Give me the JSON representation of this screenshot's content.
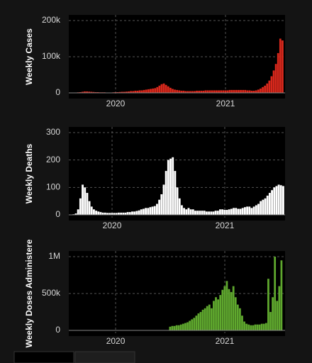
{
  "chart_data": [
    {
      "type": "bar",
      "y_label": "Weekly Cases",
      "color": "#d9281c",
      "grid": true,
      "xlim": [
        2019.574,
        2021.542
      ],
      "xticks": [
        2020,
        2021
      ],
      "ylim": [
        0,
        200000
      ],
      "yticks": [
        0,
        {
          "value": 100000,
          "label": "100k"
        },
        {
          "value": 200000,
          "label": "200k"
        }
      ],
      "x": [
        2019.6,
        2019.62,
        2019.64,
        2019.66,
        2019.68,
        2019.7,
        2019.72,
        2019.74,
        2019.76,
        2019.78,
        2019.8,
        2019.82,
        2019.84,
        2019.86,
        2019.88,
        2019.9,
        2019.92,
        2019.94,
        2019.96,
        2019.98,
        2020.0,
        2020.02,
        2020.04,
        2020.06,
        2020.08,
        2020.1,
        2020.12,
        2020.14,
        2020.16,
        2020.18,
        2020.2,
        2020.22,
        2020.24,
        2020.26,
        2020.28,
        2020.3,
        2020.32,
        2020.34,
        2020.36,
        2020.38,
        2020.4,
        2020.42,
        2020.44,
        2020.46,
        2020.48,
        2020.5,
        2020.52,
        2020.54,
        2020.56,
        2020.58,
        2020.6,
        2020.62,
        2020.64,
        2020.66,
        2020.68,
        2020.7,
        2020.72,
        2020.74,
        2020.76,
        2020.78,
        2020.8,
        2020.82,
        2020.84,
        2020.86,
        2020.88,
        2020.9,
        2020.92,
        2020.94,
        2020.96,
        2020.98,
        2021.0,
        2021.02,
        2021.04,
        2021.06,
        2021.08,
        2021.1,
        2021.12,
        2021.14,
        2021.16,
        2021.18,
        2021.2,
        2021.22,
        2021.24,
        2021.26,
        2021.28,
        2021.3,
        2021.32,
        2021.34,
        2021.36,
        2021.38,
        2021.4,
        2021.42,
        2021.44,
        2021.46,
        2021.48,
        2021.5,
        2021.52
      ],
      "values": [
        500,
        800,
        1000,
        1500,
        2000,
        3000,
        4000,
        4000,
        3500,
        3000,
        2500,
        2000,
        2000,
        1500,
        1500,
        1500,
        1000,
        1000,
        1000,
        1500,
        2000,
        2000,
        2500,
        3000,
        3000,
        3500,
        4000,
        5000,
        5000,
        6000,
        6000,
        7000,
        7000,
        8000,
        9000,
        10000,
        11000,
        12000,
        13000,
        16000,
        20000,
        24000,
        26000,
        22000,
        18000,
        14000,
        11000,
        9000,
        8000,
        7000,
        6000,
        6000,
        5000,
        5000,
        5000,
        5000,
        5000,
        6000,
        6000,
        6000,
        6000,
        7000,
        7000,
        7000,
        7000,
        7000,
        7000,
        7000,
        7000,
        7000,
        7000,
        7000,
        8000,
        8000,
        8000,
        8000,
        8000,
        8000,
        8000,
        8000,
        7000,
        7000,
        6000,
        6000,
        7000,
        9000,
        12000,
        16000,
        20000,
        26000,
        34000,
        46000,
        62000,
        80000,
        110000,
        150000,
        145000
      ]
    },
    {
      "type": "bar",
      "y_label": "Weekly Deaths",
      "color": "#ffffff",
      "grid": true,
      "xlim": [
        2019.616,
        2021.535
      ],
      "xticks": [
        2020,
        2021
      ],
      "ylim": [
        0,
        300
      ],
      "yticks": [
        0,
        100,
        200,
        300
      ],
      "x": [
        2019.6,
        2019.62,
        2019.64,
        2019.66,
        2019.68,
        2019.7,
        2019.72,
        2019.74,
        2019.76,
        2019.78,
        2019.8,
        2019.82,
        2019.84,
        2019.86,
        2019.88,
        2019.9,
        2019.92,
        2019.94,
        2019.96,
        2019.98,
        2020.0,
        2020.02,
        2020.04,
        2020.06,
        2020.08,
        2020.1,
        2020.12,
        2020.14,
        2020.16,
        2020.18,
        2020.2,
        2020.22,
        2020.24,
        2020.26,
        2020.28,
        2020.3,
        2020.32,
        2020.34,
        2020.36,
        2020.38,
        2020.4,
        2020.42,
        2020.44,
        2020.46,
        2020.48,
        2020.5,
        2020.52,
        2020.54,
        2020.56,
        2020.58,
        2020.6,
        2020.62,
        2020.64,
        2020.66,
        2020.68,
        2020.7,
        2020.72,
        2020.74,
        2020.76,
        2020.78,
        2020.8,
        2020.82,
        2020.84,
        2020.86,
        2020.88,
        2020.9,
        2020.92,
        2020.94,
        2020.96,
        2020.98,
        2021.0,
        2021.02,
        2021.04,
        2021.06,
        2021.08,
        2021.1,
        2021.12,
        2021.14,
        2021.16,
        2021.18,
        2021.2,
        2021.22,
        2021.24,
        2021.26,
        2021.28,
        2021.3,
        2021.32,
        2021.34,
        2021.36,
        2021.38,
        2021.4,
        2021.42,
        2021.44,
        2021.46,
        2021.48,
        2021.5,
        2021.52
      ],
      "values": [
        0,
        0,
        0,
        2,
        5,
        20,
        60,
        110,
        100,
        80,
        50,
        30,
        20,
        15,
        12,
        10,
        8,
        8,
        7,
        7,
        7,
        7,
        7,
        8,
        8,
        8,
        8,
        10,
        10,
        12,
        12,
        14,
        16,
        20,
        22,
        25,
        25,
        28,
        30,
        32,
        40,
        55,
        75,
        110,
        160,
        200,
        205,
        210,
        160,
        100,
        60,
        35,
        25,
        20,
        25,
        20,
        20,
        15,
        15,
        15,
        15,
        15,
        12,
        12,
        12,
        12,
        15,
        15,
        20,
        20,
        18,
        18,
        20,
        22,
        25,
        25,
        22,
        22,
        25,
        28,
        30,
        30,
        25,
        30,
        35,
        40,
        50,
        55,
        60,
        70,
        80,
        90,
        100,
        105,
        110,
        108,
        105
      ]
    },
    {
      "type": "bar",
      "y_label": "Weekly Doses Administere",
      "color": "#5fa82e",
      "grid": true,
      "xlim": [
        2019.571,
        2021.552
      ],
      "xticks": [
        2020,
        2021
      ],
      "ylim": [
        0,
        1000000
      ],
      "yticks": [
        0,
        {
          "value": 500000,
          "label": "500k"
        },
        {
          "value": 1000000,
          "label": "1M"
        }
      ],
      "x": [
        2019.6,
        2019.62,
        2019.64,
        2019.66,
        2019.68,
        2019.7,
        2019.72,
        2019.74,
        2019.76,
        2019.78,
        2019.8,
        2019.82,
        2019.84,
        2019.86,
        2019.88,
        2019.9,
        2019.92,
        2019.94,
        2019.96,
        2019.98,
        2020.0,
        2020.02,
        2020.04,
        2020.06,
        2020.08,
        2020.1,
        2020.12,
        2020.14,
        2020.16,
        2020.18,
        2020.2,
        2020.22,
        2020.24,
        2020.26,
        2020.28,
        2020.3,
        2020.32,
        2020.34,
        2020.36,
        2020.38,
        2020.4,
        2020.42,
        2020.44,
        2020.46,
        2020.48,
        2020.5,
        2020.52,
        2020.54,
        2020.56,
        2020.58,
        2020.6,
        2020.62,
        2020.64,
        2020.66,
        2020.68,
        2020.7,
        2020.72,
        2020.74,
        2020.76,
        2020.78,
        2020.8,
        2020.82,
        2020.84,
        2020.86,
        2020.88,
        2020.9,
        2020.92,
        2020.94,
        2020.96,
        2020.98,
        2021.0,
        2021.02,
        2021.04,
        2021.06,
        2021.08,
        2021.1,
        2021.12,
        2021.14,
        2021.16,
        2021.18,
        2021.2,
        2021.22,
        2021.24,
        2021.26,
        2021.28,
        2021.3,
        2021.32,
        2021.34,
        2021.36,
        2021.38,
        2021.4,
        2021.42,
        2021.44,
        2021.46,
        2021.48,
        2021.5,
        2021.52
      ],
      "values": [
        0,
        0,
        0,
        0,
        0,
        0,
        0,
        0,
        0,
        0,
        0,
        0,
        0,
        0,
        0,
        0,
        0,
        0,
        0,
        0,
        0,
        0,
        0,
        0,
        0,
        0,
        0,
        0,
        0,
        0,
        0,
        0,
        0,
        0,
        0,
        0,
        0,
        0,
        0,
        0,
        0,
        0,
        0,
        0,
        0,
        50000,
        60000,
        60000,
        70000,
        70000,
        80000,
        90000,
        100000,
        110000,
        130000,
        150000,
        170000,
        200000,
        230000,
        250000,
        280000,
        300000,
        330000,
        350000,
        300000,
        400000,
        450000,
        420000,
        480000,
        550000,
        600000,
        670000,
        560000,
        520000,
        600000,
        450000,
        350000,
        300000,
        200000,
        120000,
        90000,
        80000,
        70000,
        70000,
        80000,
        80000,
        80000,
        90000,
        90000,
        100000,
        700000,
        250000,
        450000,
        1000000,
        400000,
        600000,
        950000
      ]
    }
  ]
}
